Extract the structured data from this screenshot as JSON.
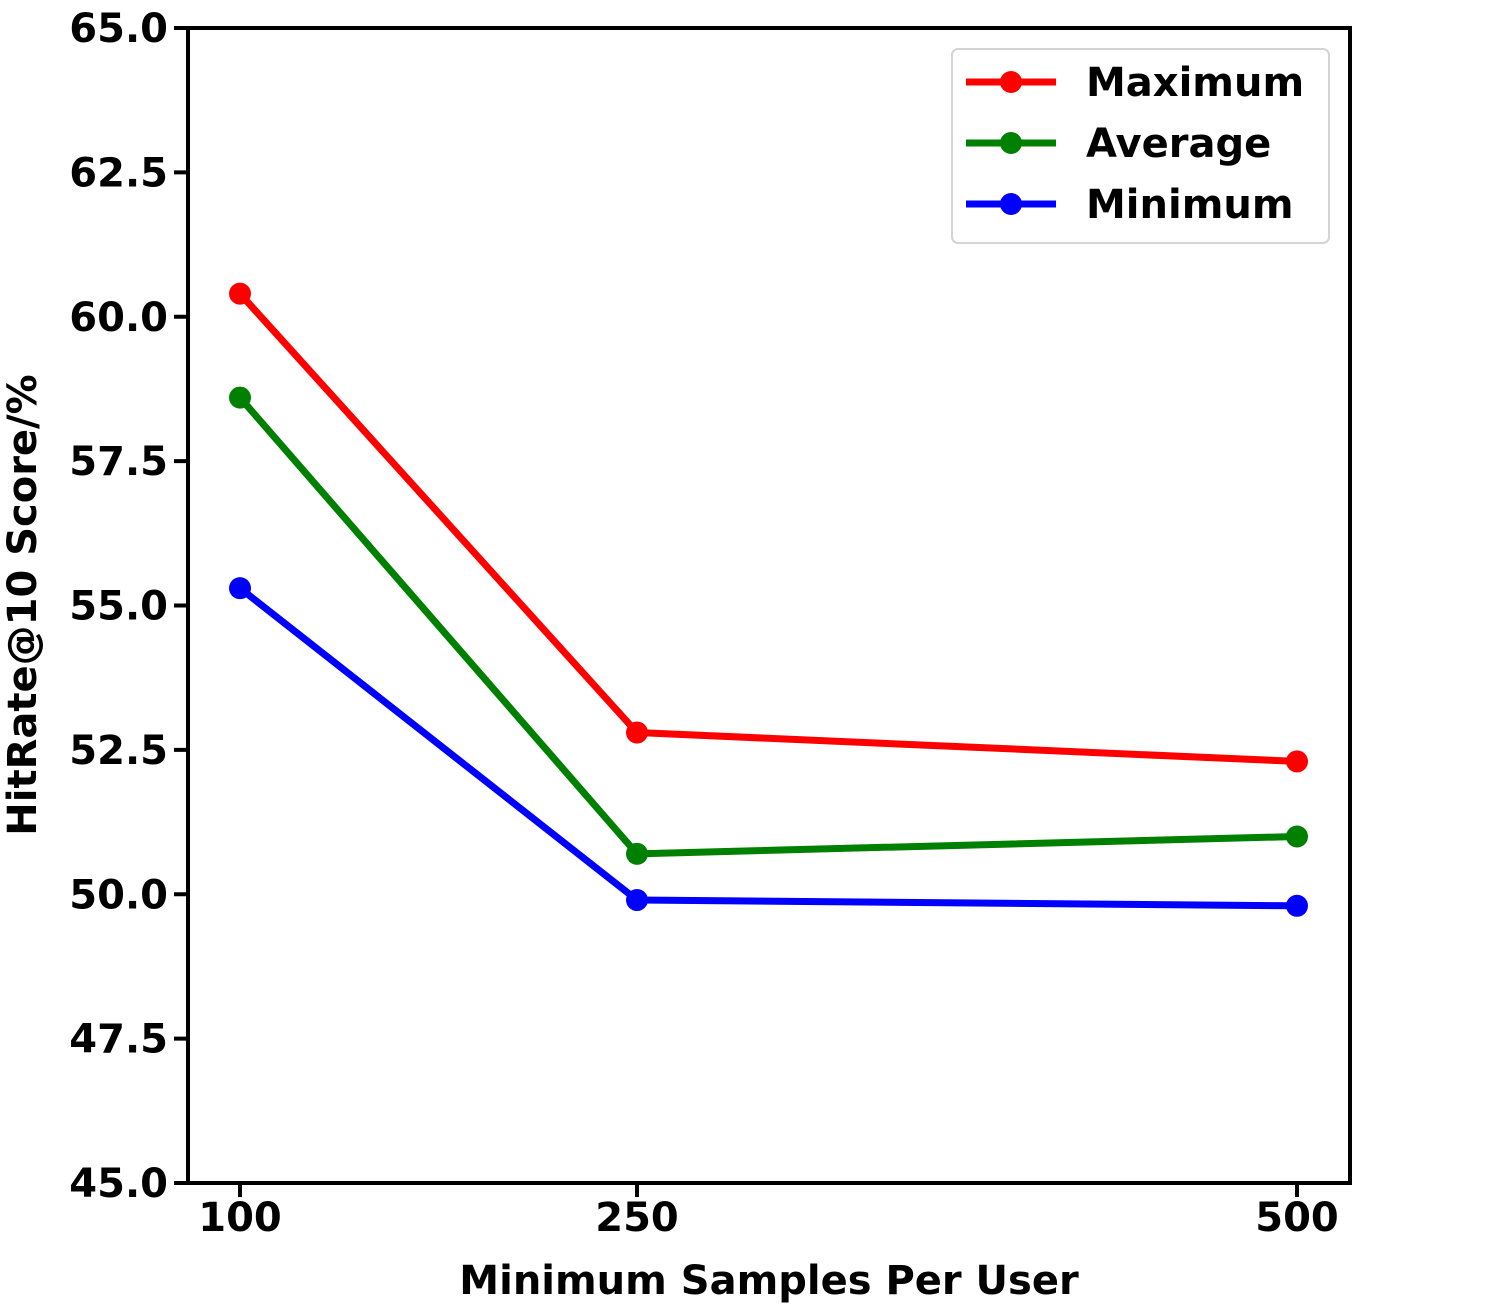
{
  "chart_data": {
    "type": "line",
    "title": "",
    "xlabel": "Minimum Samples Per User",
    "ylabel": "HitRate@10 Score/%",
    "x": [
      100,
      250,
      500
    ],
    "x_tick_labels": [
      "100",
      "250",
      "500"
    ],
    "ylim": [
      45.0,
      65.0
    ],
    "y_ticks": [
      45.0,
      47.5,
      50.0,
      52.5,
      55.0,
      57.5,
      60.0,
      62.5,
      65.0
    ],
    "y_tick_labels": [
      "45.0",
      "47.5",
      "50.0",
      "52.5",
      "55.0",
      "57.5",
      "60.0",
      "62.5",
      "65.0"
    ],
    "grid": false,
    "legend_position": "top-right",
    "series": [
      {
        "name": "Maximum",
        "color": "#ff0000",
        "values": [
          60.4,
          52.8,
          52.3
        ]
      },
      {
        "name": "Average",
        "color": "#008000",
        "values": [
          58.6,
          50.7,
          51.0
        ]
      },
      {
        "name": "Minimum",
        "color": "#0000ff",
        "values": [
          55.3,
          49.9,
          49.8
        ]
      }
    ]
  }
}
